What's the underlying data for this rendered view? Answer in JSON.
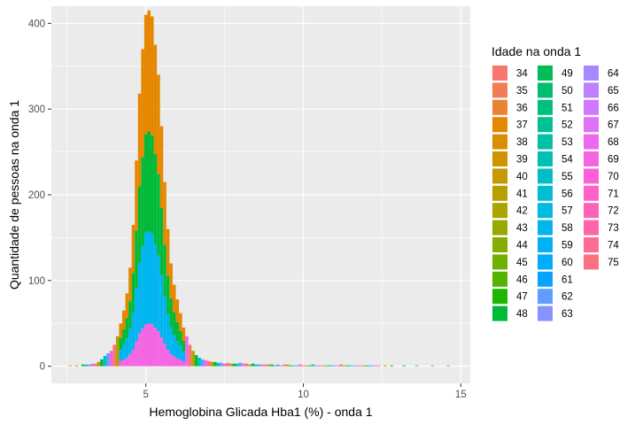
{
  "chart_data": {
    "type": "bar",
    "subtype": "stacked-histogram",
    "title": "",
    "xlabel": "Hemoglobina Glicada Hba1 (%) - onda 1",
    "ylabel": "Quantidade de pessoas na onda 1",
    "xlim": [
      2.0,
      15.3
    ],
    "ylim": [
      -20,
      420
    ],
    "x_ticks": [
      5,
      10,
      15
    ],
    "y_ticks": [
      0,
      100,
      200,
      300,
      400
    ],
    "bin_width": 0.1,
    "grid": true,
    "panel_background": "#ebebeb",
    "grid_color": "#ffffff",
    "legend": {
      "title": "Idade na onda 1",
      "position": "right",
      "ages_start": 34,
      "ages_end": 75,
      "labels": [
        "34",
        "35",
        "36",
        "37",
        "38",
        "39",
        "40",
        "41",
        "42",
        "43",
        "44",
        "45",
        "46",
        "47",
        "48",
        "49",
        "50",
        "51",
        "52",
        "53",
        "54",
        "55",
        "56",
        "57",
        "58",
        "59",
        "60",
        "61",
        "62",
        "63",
        "64",
        "65",
        "66",
        "67",
        "68",
        "69",
        "70",
        "71",
        "72",
        "73",
        "74",
        "75"
      ]
    },
    "palette": "hue scale (red-orange → green → cyan-blue → purple → pink), one hue per age 34–75",
    "stack_bands": [
      {
        "from": 34,
        "to": 47,
        "approx_cumulative_share_at_peak": 1.0,
        "color": "#E58700"
      },
      {
        "from": 48,
        "to": 55,
        "approx_cumulative_share_at_peak": 0.66,
        "color": "#00BA38"
      },
      {
        "from": 56,
        "to": 63,
        "approx_cumulative_share_at_peak": 0.38,
        "color": "#00B4F0"
      },
      {
        "from": 64,
        "to": 75,
        "approx_cumulative_share_at_peak": 0.12,
        "color": "#F564E3"
      }
    ],
    "bins_x": [
      2.6,
      2.8,
      3.0,
      3.1,
      3.2,
      3.3,
      3.4,
      3.5,
      3.6,
      3.7,
      3.8,
      3.9,
      4.0,
      4.1,
      4.2,
      4.3,
      4.4,
      4.5,
      4.6,
      4.7,
      4.8,
      4.9,
      5.0,
      5.1,
      5.2,
      5.3,
      5.4,
      5.5,
      5.6,
      5.7,
      5.8,
      5.9,
      6.0,
      6.1,
      6.2,
      6.3,
      6.4,
      6.5,
      6.6,
      6.7,
      6.8,
      6.9,
      7.0,
      7.1,
      7.2,
      7.3,
      7.4,
      7.5,
      7.6,
      7.7,
      7.8,
      7.9,
      8.0,
      8.1,
      8.2,
      8.3,
      8.4,
      8.5,
      8.6,
      8.7,
      8.8,
      8.9,
      9.0,
      9.1,
      9.2,
      9.3,
      9.4,
      9.5,
      9.6,
      9.7,
      9.8,
      9.9,
      10.0,
      10.1,
      10.2,
      10.3,
      10.4,
      10.5,
      10.6,
      10.7,
      10.8,
      10.9,
      11.0,
      11.1,
      11.2,
      11.3,
      11.4,
      11.5,
      11.6,
      11.7,
      11.8,
      11.9,
      12.0,
      12.1,
      12.2,
      12.3,
      12.4,
      12.6,
      12.8,
      13.2,
      13.6,
      14.1,
      14.6
    ],
    "bins_count": [
      1,
      1,
      2,
      2,
      2,
      3,
      3,
      5,
      8,
      12,
      15,
      18,
      25,
      35,
      50,
      65,
      85,
      115,
      165,
      240,
      318,
      370,
      410,
      415,
      408,
      375,
      340,
      280,
      215,
      160,
      120,
      95,
      78,
      62,
      45,
      35,
      25,
      18,
      13,
      10,
      8,
      7,
      6,
      5,
      5,
      4,
      4,
      3,
      4,
      3,
      3,
      3,
      4,
      3,
      3,
      2,
      3,
      2,
      2,
      2,
      2,
      2,
      2,
      1,
      2,
      1,
      2,
      2,
      1,
      1,
      1,
      2,
      1,
      1,
      1,
      2,
      1,
      1,
      1,
      1,
      1,
      1,
      1,
      1,
      2,
      1,
      1,
      1,
      1,
      1,
      1,
      1,
      1,
      1,
      1,
      1,
      1,
      1,
      1,
      1,
      1,
      1,
      1
    ]
  }
}
